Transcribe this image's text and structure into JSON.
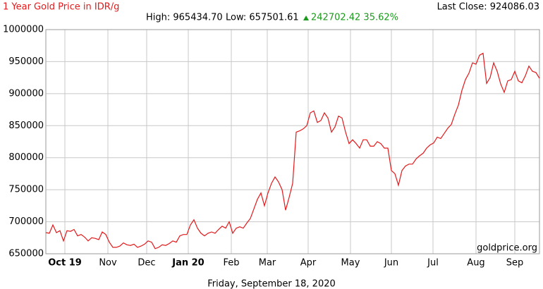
{
  "chart_data": {
    "type": "line",
    "title": "1 Year Gold Price in IDR/g",
    "last_close": "Last Close: 924086.03",
    "stats": [
      "High: 965434.70",
      "Low: 657501.61"
    ],
    "change": "242702.42 35.62%",
    "watermark": "goldprice.org",
    "date": "Friday, September 18, 2020",
    "color": "#e31a1c",
    "values": [
      683,
      682,
      695,
      683,
      686,
      670,
      686,
      685,
      688,
      678,
      680,
      676,
      670,
      675,
      674,
      672,
      684,
      680,
      668,
      660,
      660,
      662,
      667,
      664,
      663,
      665,
      660,
      662,
      665,
      670,
      668,
      658,
      660,
      664,
      663,
      666,
      670,
      668,
      678,
      680,
      680,
      695,
      703,
      690,
      682,
      678,
      682,
      684,
      682,
      688,
      693,
      690,
      700,
      682,
      690,
      692,
      690,
      698,
      705,
      720,
      735,
      745,
      725,
      745,
      760,
      770,
      762,
      750,
      718,
      738,
      760,
      840,
      842,
      845,
      850,
      870,
      873,
      855,
      858,
      870,
      862,
      840,
      848,
      865,
      862,
      840,
      822,
      828,
      822,
      815,
      828,
      828,
      818,
      818,
      825,
      822,
      815,
      815,
      780,
      775,
      757,
      780,
      787,
      790,
      790,
      798,
      803,
      807,
      815,
      820,
      823,
      832,
      830,
      838,
      846,
      852,
      868,
      882,
      905,
      922,
      932,
      948,
      946,
      960,
      963,
      916,
      925,
      948,
      935,
      915,
      902,
      920,
      922,
      935,
      920,
      917,
      928,
      943,
      935,
      933,
      924
    ],
    "values_unit_note": null,
    "xlim": [
      0,
      140
    ],
    "xticks": [
      {
        "value": 5.4,
        "label": "Oct 19"
      },
      {
        "value": 17.6,
        "label": "Nov"
      },
      {
        "value": 28.6,
        "label": "Dec"
      },
      {
        "value": 40.4,
        "label": "Jan 20"
      },
      {
        "value": 52.6,
        "label": "Feb"
      },
      {
        "value": 62.8,
        "label": "Mar"
      },
      {
        "value": 74.4,
        "label": "Apr"
      },
      {
        "value": 86.4,
        "label": "May"
      },
      {
        "value": 98,
        "label": "Jun"
      },
      {
        "value": 109.8,
        "label": "Jul"
      },
      {
        "value": 122,
        "label": "Aug"
      },
      {
        "value": 133,
        "label": "Sep"
      }
    ],
    "bold_ticks": [
      "Oct 19",
      "Jan 20"
    ],
    "ylim": [
      650000,
      1000000
    ],
    "yticks": [
      650000,
      700000,
      750000,
      800000,
      850000,
      900000,
      950000,
      1000000
    ],
    "value_scale": 1000,
    "grid": true
  }
}
